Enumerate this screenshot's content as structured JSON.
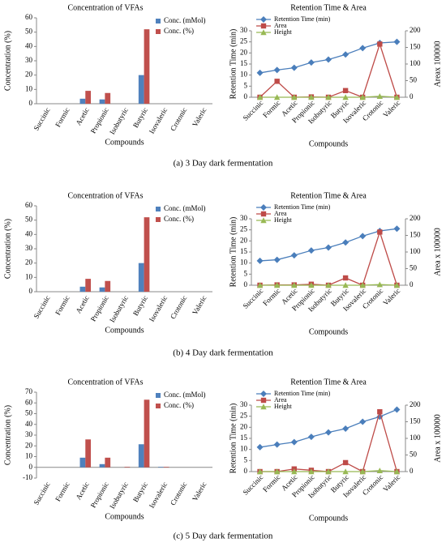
{
  "chart_data": [
    {
      "type": "bar",
      "title": "Concentration of VFAs",
      "x_label": "Compounds",
      "y_label": "Concentration (%)",
      "categories": [
        "Succinic",
        "Formic",
        "Acetic",
        "Propionic",
        "Isobutyric",
        "Butyric",
        "Isovaleric",
        "Crotonic",
        "Valeric"
      ],
      "series": [
        {
          "name": "Conc. (mMol)",
          "color": "#4f81bd",
          "values": [
            0,
            0,
            3.5,
            3,
            0,
            20,
            0,
            0,
            0
          ]
        },
        {
          "name": "Conc. (%)",
          "color": "#c0504d",
          "values": [
            0,
            0,
            9,
            7.5,
            0,
            52,
            0,
            0,
            0
          ]
        }
      ],
      "ylim": [
        0,
        60
      ],
      "yticks": [
        0,
        10,
        20,
        30,
        40,
        50,
        60
      ],
      "legend": "upper right"
    },
    {
      "type": "line",
      "title": "Retention Time & Area",
      "x_label": "Compounds",
      "y_label": "Retention Time (min)",
      "y2_label": "Areax 100000",
      "categories": [
        "Succinic",
        "Formic",
        "Acetic",
        "Propionic",
        "Isobutyric",
        "Butyric",
        "Isovaleric",
        "Crotonic",
        "Valeric"
      ],
      "series": [
        {
          "name": "Retention Time (min)",
          "color": "#4a7ebb",
          "marker": "diamond",
          "values": [
            11,
            12.3,
            13.3,
            15.7,
            17,
            19.3,
            22.2,
            24.5,
            25
          ]
        },
        {
          "name": "Area",
          "color": "#be4b48",
          "marker": "square",
          "axis": "y2",
          "values": [
            0,
            48,
            0,
            1,
            0,
            20,
            0,
            160,
            0
          ]
        },
        {
          "name": "Height",
          "color": "#98b954",
          "marker": "triangle",
          "axis": "y2",
          "values": [
            0,
            0,
            0,
            0,
            0,
            0,
            0,
            3,
            0
          ]
        }
      ],
      "ylim": [
        0,
        30
      ],
      "yticks": [
        0,
        5,
        10,
        15,
        20,
        25,
        30
      ],
      "y2lim": [
        0,
        200
      ],
      "y2ticks": [
        0,
        50,
        100,
        150,
        200
      ],
      "legend": "upper left"
    },
    {
      "type": "bar",
      "title": "Concentration of VFAs",
      "x_label": "Compounds",
      "y_label": "Concentration (%)",
      "categories": [
        "Succinic",
        "Formic",
        "Acetic",
        "Propionic",
        "Isobutyric",
        "Butyric",
        "Isovaleric",
        "Crotonic",
        "Valeric"
      ],
      "series": [
        {
          "name": "Conc. (mMol)",
          "color": "#4f81bd",
          "values": [
            0,
            0,
            3.5,
            3,
            0,
            20,
            0,
            0,
            0
          ]
        },
        {
          "name": "Conc. (%)",
          "color": "#c0504d",
          "values": [
            0,
            0,
            9,
            7.5,
            0,
            52,
            0,
            0,
            0
          ]
        }
      ],
      "ylim": [
        0,
        60
      ],
      "yticks": [
        0,
        10,
        20,
        30,
        40,
        50,
        60
      ],
      "legend": "upper right"
    },
    {
      "type": "line",
      "title": "Retention Time & Area",
      "x_label": "Compounds",
      "y_label": "Retention Time (min)",
      "y2_label": "Area x 100000",
      "categories": [
        "Succinic",
        "Formic",
        "Acetic",
        "Propionic",
        "Isobutyric",
        "Butyric",
        "Isovaleric",
        "Crotonic",
        "Valeric"
      ],
      "series": [
        {
          "name": "Retention Time (min)",
          "color": "#4a7ebb",
          "marker": "diamond",
          "values": [
            11,
            11.5,
            13.5,
            15.7,
            17,
            19.3,
            22.2,
            24.5,
            25.5
          ]
        },
        {
          "name": "Area",
          "color": "#be4b48",
          "marker": "square",
          "axis": "y2",
          "values": [
            0,
            1,
            1,
            3,
            0,
            22,
            0,
            160,
            0
          ]
        },
        {
          "name": "Height",
          "color": "#98b954",
          "marker": "triangle",
          "axis": "y2",
          "values": [
            0,
            0,
            0,
            0,
            0,
            0,
            0,
            2,
            0
          ]
        }
      ],
      "ylim": [
        0,
        30
      ],
      "yticks": [
        0,
        5,
        10,
        15,
        20,
        25,
        30
      ],
      "y2lim": [
        0,
        200
      ],
      "y2ticks": [
        0,
        50,
        100,
        150,
        200
      ],
      "legend": "upper left"
    },
    {
      "type": "bar",
      "title": "Concentration of VFAs",
      "x_label": "Compounds",
      "y_label": "Concentration (%)",
      "categories": [
        "Succinic",
        "Formic",
        "Acetic",
        "Propionic",
        "Isobutyric",
        "Butyric",
        "Isovaleric",
        "Crotonic",
        "Valeric"
      ],
      "series": [
        {
          "name": "Conc. (mMol)",
          "color": "#4f81bd",
          "values": [
            0,
            0,
            9,
            3,
            0,
            21.5,
            0.5,
            0,
            0
          ]
        },
        {
          "name": "Conc. (%)",
          "color": "#c0504d",
          "values": [
            0,
            0,
            26,
            9,
            0.5,
            63,
            0.5,
            0,
            0
          ]
        }
      ],
      "ylim": [
        -10,
        70
      ],
      "yticks": [
        -10,
        0,
        10,
        20,
        30,
        40,
        50,
        60,
        70
      ],
      "legend": "upper right"
    },
    {
      "type": "line",
      "title": "Retention Time & Area",
      "x_label": "Compounds",
      "y_label": "Retention Time (min)",
      "y2_label": "Area x 100000",
      "categories": [
        "Succinic",
        "Formic",
        "Acetic",
        "Propionic",
        "Isobutyric",
        "Butyric",
        "Isovaleric",
        "Crotonic",
        "Valeric"
      ],
      "series": [
        {
          "name": "Retention Time (min)",
          "color": "#4a7ebb",
          "marker": "diamond",
          "values": [
            11,
            12.2,
            13.3,
            15.7,
            17.7,
            19.4,
            22.5,
            24.8,
            28
          ]
        },
        {
          "name": "Area",
          "color": "#be4b48",
          "marker": "square",
          "axis": "y2",
          "values": [
            0,
            0,
            8,
            4,
            0,
            27,
            0,
            180,
            0
          ]
        },
        {
          "name": "Height",
          "color": "#98b954",
          "marker": "triangle",
          "axis": "y2",
          "values": [
            0,
            0,
            0,
            0,
            0,
            0,
            0,
            3,
            0
          ]
        }
      ],
      "ylim": [
        0,
        30
      ],
      "yticks": [
        0,
        5,
        10,
        15,
        20,
        25,
        30
      ],
      "y2lim": [
        0,
        200
      ],
      "y2ticks": [
        0,
        50,
        100,
        150,
        200
      ],
      "legend": "upper left"
    }
  ],
  "captions": [
    "(a) 3 Day dark fermentation",
    "(b) 4 Day dark fermentation",
    "(c) 5 Day dark fermentation"
  ]
}
